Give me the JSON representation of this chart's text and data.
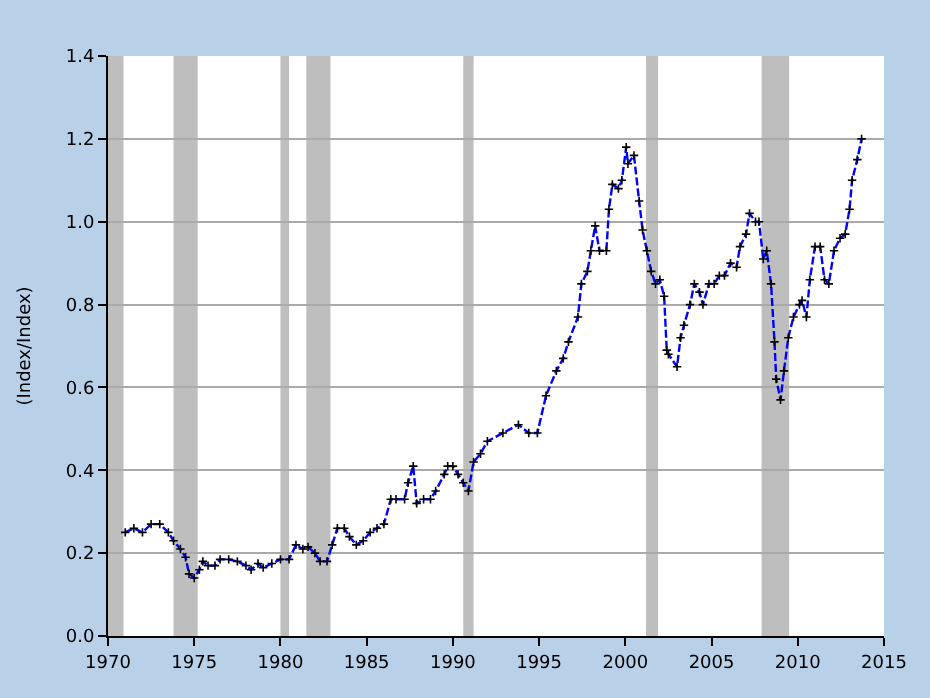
{
  "chart_data": {
    "type": "line",
    "ylabel": "(Index/Index)",
    "xlim": [
      1970,
      2015
    ],
    "xticks": [
      1970,
      1975,
      1980,
      1985,
      1990,
      1995,
      2000,
      2005,
      2010,
      2015
    ],
    "ylim": [
      0,
      1.4
    ],
    "yticks": [
      {
        "value": 0,
        "label": "0.0"
      },
      {
        "value": 0.2,
        "label": "0.2"
      },
      {
        "value": 0.4,
        "label": "0.4"
      },
      {
        "value": 0.6,
        "label": "0.6"
      },
      {
        "value": 0.8,
        "label": "0.8"
      },
      {
        "value": 1.0,
        "label": "1.0"
      },
      {
        "value": 1.2,
        "label": "1.2"
      },
      {
        "value": 1.4,
        "label": "1.4"
      }
    ],
    "grid": "y",
    "marker": "cross",
    "line_style": "dashed",
    "bands": [
      {
        "axis": "x",
        "from": 1970.0,
        "to": 1970.9,
        "color": "#bebebe"
      },
      {
        "axis": "x",
        "from": 1973.8,
        "to": 1975.2,
        "color": "#bebebe"
      },
      {
        "axis": "x",
        "from": 1980.0,
        "to": 1980.5,
        "color": "#bebebe"
      },
      {
        "axis": "x",
        "from": 1981.5,
        "to": 1982.9,
        "color": "#bebebe"
      },
      {
        "axis": "x",
        "from": 1990.6,
        "to": 1991.2,
        "color": "#bebebe"
      },
      {
        "axis": "x",
        "from": 2001.2,
        "to": 2001.9,
        "color": "#bebebe"
      },
      {
        "axis": "x",
        "from": 2007.9,
        "to": 2009.5,
        "color": "#bebebe"
      }
    ],
    "series": [
      {
        "color": "#0000ff",
        "x": [
          1971.0,
          1971.5,
          1972.0,
          1972.5,
          1973.0,
          1973.5,
          1973.8,
          1974.2,
          1974.5,
          1974.7,
          1975.0,
          1975.3,
          1975.5,
          1975.8,
          1976.2,
          1976.5,
          1977.0,
          1977.5,
          1978.0,
          1978.3,
          1978.7,
          1979.0,
          1979.5,
          1980.0,
          1980.5,
          1980.9,
          1981.3,
          1981.6,
          1982.0,
          1982.3,
          1982.7,
          1983.0,
          1983.3,
          1983.7,
          1984.0,
          1984.4,
          1984.8,
          1985.2,
          1985.6,
          1986.0,
          1986.4,
          1986.7,
          1987.2,
          1987.4,
          1987.7,
          1987.9,
          1988.3,
          1988.7,
          1989.0,
          1989.5,
          1989.7,
          1990.0,
          1990.3,
          1990.6,
          1990.9,
          1991.2,
          1991.6,
          1992.0,
          1992.9,
          1993.8,
          1994.4,
          1994.9,
          1995.4,
          1996.0,
          1996.4,
          1996.7,
          1997.25,
          1997.45,
          1997.8,
          1998.0,
          1998.25,
          1998.5,
          1998.9,
          1999.05,
          1999.25,
          1999.6,
          1999.8,
          2000.05,
          2000.15,
          2000.5,
          2000.8,
          2001.0,
          2001.25,
          2001.5,
          2001.75,
          2002.0,
          2002.25,
          2002.4,
          2002.5,
          2003.0,
          2003.2,
          2003.4,
          2003.75,
          2004.0,
          2004.3,
          2004.5,
          2004.85,
          2005.15,
          2005.45,
          2005.75,
          2006.1,
          2006.45,
          2006.65,
          2007.0,
          2007.2,
          2007.55,
          2007.75,
          2008.0,
          2008.2,
          2008.45,
          2008.65,
          2008.75,
          2009.0,
          2009.2,
          2009.45,
          2009.75,
          2010.1,
          2010.25,
          2010.5,
          2010.7,
          2011.0,
          2011.3,
          2011.55,
          2011.8,
          2012.1,
          2012.45,
          2012.75,
          2013.0,
          2013.15,
          2013.45,
          2013.7
        ],
        "values": [
          0.25,
          0.26,
          0.25,
          0.27,
          0.27,
          0.25,
          0.23,
          0.21,
          0.19,
          0.15,
          0.14,
          0.16,
          0.18,
          0.17,
          0.17,
          0.185,
          0.185,
          0.18,
          0.17,
          0.16,
          0.175,
          0.165,
          0.175,
          0.185,
          0.185,
          0.22,
          0.21,
          0.215,
          0.2,
          0.18,
          0.18,
          0.22,
          0.26,
          0.26,
          0.24,
          0.22,
          0.23,
          0.25,
          0.26,
          0.27,
          0.33,
          0.33,
          0.33,
          0.37,
          0.41,
          0.32,
          0.33,
          0.33,
          0.35,
          0.39,
          0.41,
          0.41,
          0.39,
          0.37,
          0.35,
          0.42,
          0.44,
          0.47,
          0.49,
          0.51,
          0.49,
          0.49,
          0.58,
          0.64,
          0.67,
          0.71,
          0.77,
          0.85,
          0.88,
          0.93,
          0.99,
          0.93,
          0.93,
          1.03,
          1.09,
          1.08,
          1.1,
          1.18,
          1.14,
          1.16,
          1.05,
          0.98,
          0.93,
          0.88,
          0.85,
          0.86,
          0.82,
          0.69,
          0.68,
          0.65,
          0.72,
          0.75,
          0.8,
          0.85,
          0.83,
          0.8,
          0.85,
          0.85,
          0.87,
          0.87,
          0.9,
          0.89,
          0.94,
          0.97,
          1.02,
          1.0,
          1.0,
          0.91,
          0.93,
          0.85,
          0.71,
          0.62,
          0.57,
          0.64,
          0.72,
          0.77,
          0.8,
          0.81,
          0.77,
          0.86,
          0.94,
          0.94,
          0.86,
          0.85,
          0.93,
          0.96,
          0.97,
          1.03,
          1.1,
          1.15,
          1.2
        ]
      }
    ]
  }
}
